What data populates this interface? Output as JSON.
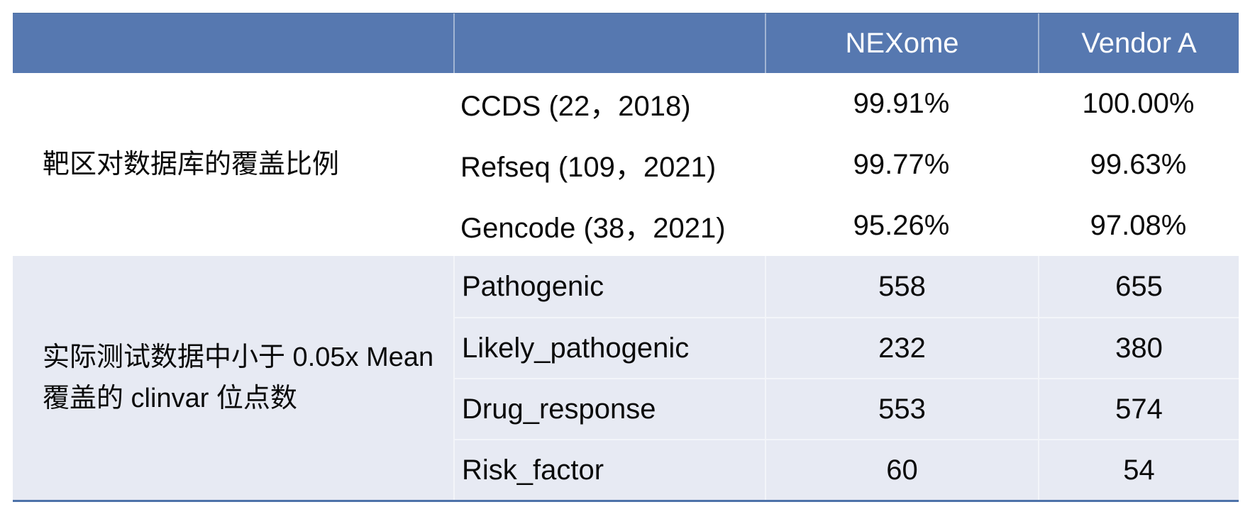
{
  "table": {
    "colors": {
      "header_bg": "#5678b0",
      "header_text": "#ffffff",
      "section2_bg": "#e7eaf3",
      "bottom_rule": "#4d72a9",
      "body_text": "#0a0a0a"
    },
    "header": {
      "col1": "",
      "col2": "",
      "nexome": "NEXome",
      "vendor_a": "Vendor A"
    },
    "sections": [
      {
        "category_lines": [
          "靶区对数据库的覆盖比例"
        ],
        "rows": [
          {
            "label": "CCDS (22，2018)",
            "nexome": "99.91%",
            "vendor_a": "100.00%"
          },
          {
            "label": "Refseq (109，2021)",
            "nexome": "99.77%",
            "vendor_a": "99.63%"
          },
          {
            "label": "Gencode (38，2021)",
            "nexome": "95.26%",
            "vendor_a": "97.08%"
          }
        ]
      },
      {
        "category_lines": [
          "实际测试数据中小于 0.05x Mean",
          "覆盖的 clinvar 位点数"
        ],
        "rows": [
          {
            "label": "Pathogenic",
            "nexome": "558",
            "vendor_a": "655"
          },
          {
            "label": "Likely_pathogenic",
            "nexome": "232",
            "vendor_a": "380"
          },
          {
            "label": "Drug_response",
            "nexome": "553",
            "vendor_a": "574"
          },
          {
            "label": "Risk_factor",
            "nexome": "60",
            "vendor_a": "54"
          }
        ]
      }
    ]
  }
}
